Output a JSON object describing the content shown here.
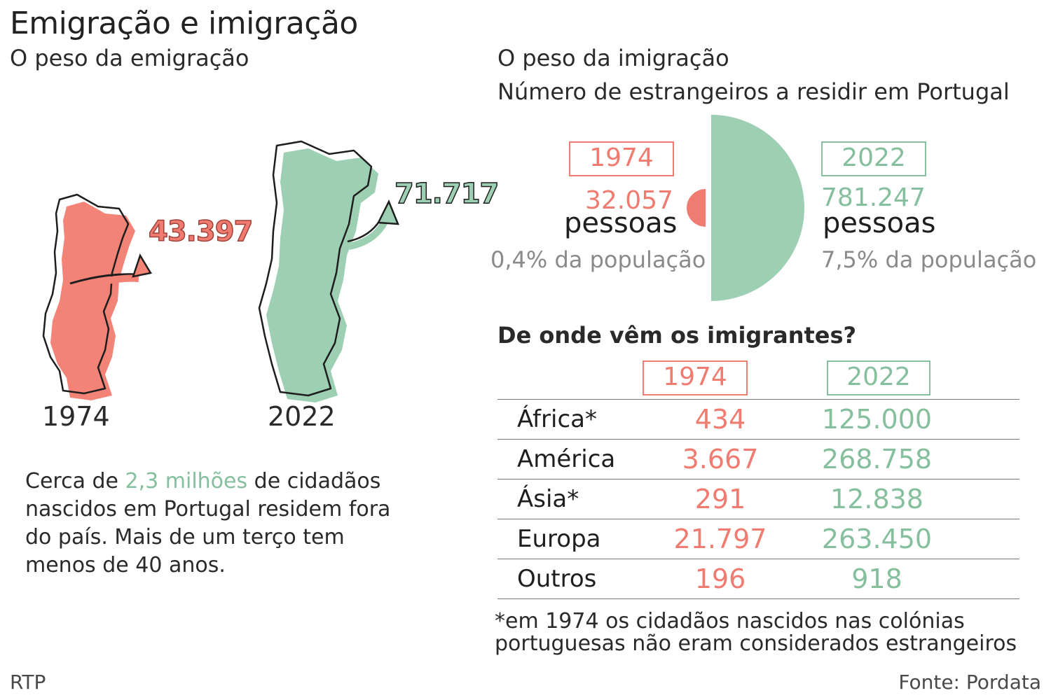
{
  "title": "Emigração e imigração",
  "emigration": {
    "heading": "O peso da emigração",
    "maps": [
      {
        "year": "1974",
        "value": "43.397",
        "color": "#f07b70"
      },
      {
        "year": "2022",
        "value": "71.717",
        "color": "#9dcfb2"
      }
    ],
    "paragraph": {
      "pre": "Cerca de ",
      "highlight": "2,3 milhões",
      "post": " de cidadãos nascidos em Portugal residem fora do país. Mais de um terço tem menos de 40 anos."
    }
  },
  "immigration": {
    "heading": "O peso da imigração",
    "subheading": "Número de estrangeiros a residir em Portugal",
    "left": {
      "year": "1974",
      "value": "32.057",
      "unit": "pessoas",
      "share": "0,4% da população"
    },
    "right": {
      "year": "2022",
      "value": "781.247",
      "unit": "pessoas",
      "share": "7,5% da população"
    }
  },
  "origins": {
    "heading": "De onde vêm os imigrantes?",
    "col_1974": "1974",
    "col_2022": "2022",
    "rows": [
      {
        "region": "África*",
        "y1974": "434",
        "y2022": "125.000"
      },
      {
        "region": "América",
        "y1974": "3.667",
        "y2022": "268.758"
      },
      {
        "region": "Ásia*",
        "y1974": "291",
        "y2022": "12.838"
      },
      {
        "region": "Europa",
        "y1974": "21.797",
        "y2022": "263.450"
      },
      {
        "region": "Outros",
        "y1974": "196",
        "y2022": "918"
      }
    ],
    "footnote": "*em 1974 os cidadãos nascidos nas colónias portuguesas não eram considerados estrangeiros"
  },
  "footer": {
    "left": "RTP",
    "right": "Fonte: Pordata"
  },
  "chart_data": {
    "type": "pie",
    "title": "Número de estrangeiros a residir em Portugal",
    "categories": [
      "1974",
      "2022"
    ],
    "values": [
      32057,
      781247
    ],
    "units": "pessoas",
    "share_of_population_pct": [
      0.4,
      7.5
    ],
    "colors": [
      "#f07b70",
      "#9dcfb2"
    ]
  }
}
